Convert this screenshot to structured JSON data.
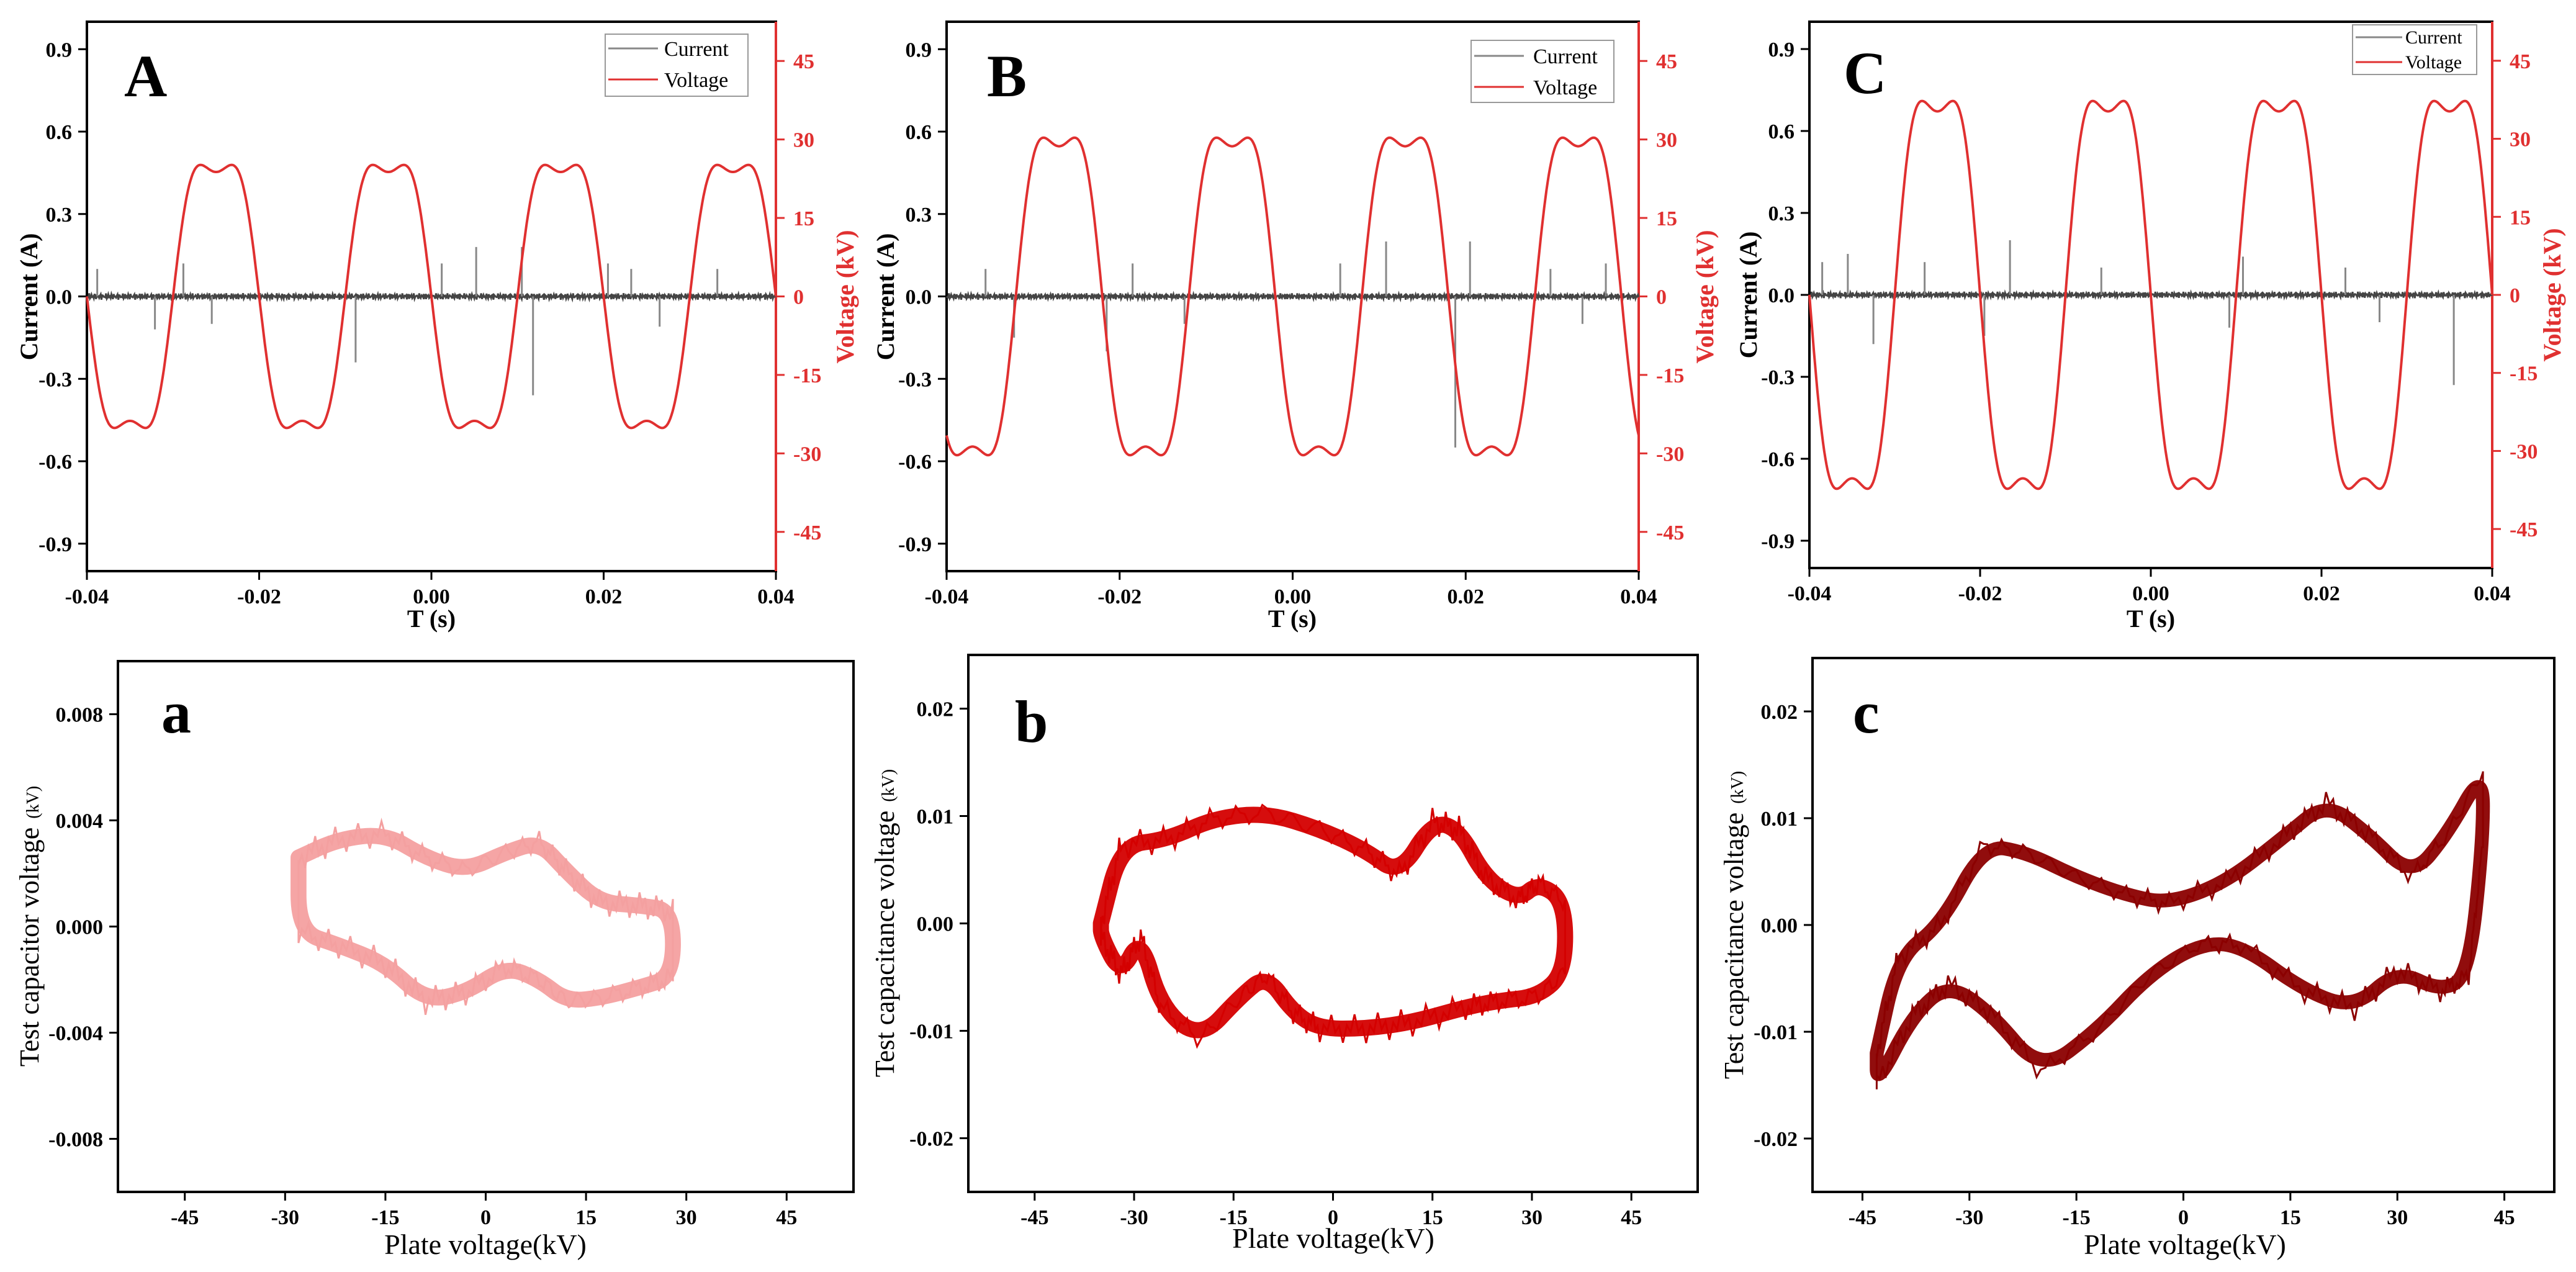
{
  "chart_data": [
    {
      "id": "A",
      "type": "line",
      "panel_label": "A",
      "xlabel": "T (s)",
      "ylabel": "Current (A)",
      "y2label": "Voltage (kV)",
      "xlim": [
        -0.04,
        0.04
      ],
      "ylim": [
        -1.0,
        1.0
      ],
      "y2lim": [
        -52.5,
        52.5
      ],
      "xticks": [
        "-0.04",
        "-0.02",
        "0.00",
        "0.02",
        "0.04"
      ],
      "xtick_values": [
        -0.04,
        -0.02,
        0.0,
        0.02,
        0.04
      ],
      "yticks": [
        "-0.9",
        "-0.6",
        "-0.3",
        "0.0",
        "0.3",
        "0.6",
        "0.9"
      ],
      "ytick_values": [
        -0.9,
        -0.6,
        -0.3,
        0.0,
        0.3,
        0.6,
        0.9
      ],
      "y2ticks": [
        "-45",
        "-30",
        "-15",
        "0",
        "15",
        "30",
        "45"
      ],
      "y2tick_values": [
        -45,
        -30,
        -15,
        0,
        15,
        30,
        45
      ],
      "legend": [
        "Current",
        "Voltage"
      ],
      "series": [
        {
          "name": "Current",
          "axis": "left",
          "color": "#444444",
          "baseline": 0.0,
          "spikes": [
            [
              -0.0388,
              0.1
            ],
            [
              -0.0321,
              -0.12
            ],
            [
              -0.0288,
              0.12
            ],
            [
              -0.0255,
              -0.1
            ],
            [
              -0.0088,
              -0.24
            ],
            [
              0.0012,
              0.12
            ],
            [
              0.0052,
              0.18
            ],
            [
              0.0105,
              0.18
            ],
            [
              0.0118,
              -0.36
            ],
            [
              0.0205,
              0.12
            ],
            [
              0.0232,
              0.1
            ],
            [
              0.0265,
              -0.11
            ],
            [
              0.0332,
              0.1
            ]
          ]
        },
        {
          "name": "Voltage",
          "axis": "right",
          "color": "#e03030",
          "amplitude": 29,
          "period": 0.02,
          "phase_zero": -0.03
        }
      ]
    },
    {
      "id": "B",
      "type": "line",
      "panel_label": "B",
      "xlabel": "T (s)",
      "ylabel": "Current (A)",
      "y2label": "Voltage (kV)",
      "xlim": [
        -0.04,
        0.04
      ],
      "ylim": [
        -1.0,
        1.0
      ],
      "y2lim": [
        -52.5,
        52.5
      ],
      "xticks": [
        "-0.04",
        "-0.02",
        "0.00",
        "0.02",
        "0.04"
      ],
      "xtick_values": [
        -0.04,
        -0.02,
        0.0,
        0.02,
        0.04
      ],
      "yticks": [
        "-0.9",
        "-0.6",
        "-0.3",
        "0.0",
        "0.3",
        "0.6",
        "0.9"
      ],
      "ytick_values": [
        -0.9,
        -0.6,
        -0.3,
        0.0,
        0.3,
        0.6,
        0.9
      ],
      "y2ticks": [
        "-45",
        "-30",
        "-15",
        "0",
        "15",
        "30",
        "45"
      ],
      "y2tick_values": [
        -45,
        -30,
        -15,
        0,
        15,
        30,
        45
      ],
      "legend": [
        "Current",
        "Voltage"
      ],
      "series": [
        {
          "name": "Current",
          "axis": "left",
          "color": "#444444",
          "baseline": 0.0,
          "spikes": [
            [
              -0.0355,
              0.1
            ],
            [
              -0.0322,
              -0.15
            ],
            [
              -0.0215,
              -0.2
            ],
            [
              -0.0185,
              0.12
            ],
            [
              -0.0125,
              -0.1
            ],
            [
              0.0055,
              0.12
            ],
            [
              0.0108,
              0.2
            ],
            [
              0.0188,
              -0.55
            ],
            [
              0.0205,
              0.2
            ],
            [
              0.0298,
              0.1
            ],
            [
              0.0335,
              -0.1
            ],
            [
              0.0362,
              0.12
            ]
          ]
        },
        {
          "name": "Voltage",
          "axis": "right",
          "color": "#e03030",
          "amplitude": 35,
          "period": 0.02,
          "phase_zero": -0.032
        }
      ]
    },
    {
      "id": "C",
      "type": "line",
      "panel_label": "C",
      "xlabel": "T (s)",
      "ylabel": "Current (A)",
      "y2label": "Voltage (kV)",
      "xlim": [
        -0.04,
        0.04
      ],
      "ylim": [
        -1.0,
        1.0
      ],
      "y2lim": [
        -52.5,
        52.5
      ],
      "xticks": [
        "-0.04",
        "-0.02",
        "0.00",
        "0.02",
        "0.04"
      ],
      "xtick_values": [
        -0.04,
        -0.02,
        0.0,
        0.02,
        0.04
      ],
      "yticks": [
        "-0.9",
        "-0.6",
        "-0.3",
        "0.0",
        "0.3",
        "0.6",
        "0.9"
      ],
      "ytick_values": [
        -0.9,
        -0.6,
        -0.3,
        0.0,
        0.3,
        0.6,
        0.9
      ],
      "y2ticks": [
        "-45",
        "-30",
        "-15",
        "0",
        "15",
        "30",
        "45"
      ],
      "y2tick_values": [
        -45,
        -30,
        -15,
        0,
        15,
        30,
        45
      ],
      "legend": [
        "Current",
        "Voltage"
      ],
      "series": [
        {
          "name": "Current",
          "axis": "left",
          "color": "#444444",
          "baseline": 0.0,
          "spikes": [
            [
              -0.0385,
              0.12
            ],
            [
              -0.0355,
              0.15
            ],
            [
              -0.0325,
              -0.18
            ],
            [
              -0.0265,
              0.12
            ],
            [
              -0.0195,
              -0.15
            ],
            [
              -0.0165,
              0.2
            ],
            [
              -0.0058,
              0.1
            ],
            [
              0.0092,
              -0.12
            ],
            [
              0.0108,
              0.14
            ],
            [
              0.0228,
              0.1
            ],
            [
              0.0268,
              -0.1
            ],
            [
              0.0355,
              -0.33
            ]
          ]
        },
        {
          "name": "Voltage",
          "axis": "right",
          "color": "#e03030",
          "amplitude": 43,
          "period": 0.02,
          "phase_zero": -0.03
        }
      ]
    },
    {
      "id": "a",
      "type": "scatter",
      "panel_label": "a",
      "xlabel": "Plate voltage(kV)",
      "ylabel": "Test capacitor voltage",
      "ylabel_unit": "(kV)",
      "xlim": [
        -55,
        55
      ],
      "ylim": [
        -0.01,
        0.01
      ],
      "xticks": [
        "-45",
        "-30",
        "-15",
        "0",
        "15",
        "30",
        "45"
      ],
      "xtick_values": [
        -45,
        -30,
        -15,
        0,
        15,
        30,
        45
      ],
      "yticks": [
        "-0.008",
        "-0.004",
        "0.000",
        "0.004",
        "0.008"
      ],
      "ytick_values": [
        -0.008,
        -0.004,
        0.0,
        0.004,
        0.008
      ],
      "color": "#f4a0a0",
      "loop_upper": [
        [
          -28,
          0.0026
        ],
        [
          -22,
          0.0033
        ],
        [
          -15,
          0.0035
        ],
        [
          -9,
          0.0026
        ],
        [
          -3,
          0.0021
        ],
        [
          3,
          0.0028
        ],
        [
          8,
          0.0032
        ],
        [
          12,
          0.0021
        ],
        [
          17,
          0.0009
        ],
        [
          23,
          0.0008
        ],
        [
          28,
          0.0006
        ]
      ],
      "loop_lower": [
        [
          28,
          -0.0019
        ],
        [
          23,
          -0.0023
        ],
        [
          17,
          -0.0027
        ],
        [
          12,
          -0.0028
        ],
        [
          8,
          -0.002
        ],
        [
          3,
          -0.0015
        ],
        [
          -3,
          -0.0025
        ],
        [
          -9,
          -0.0028
        ],
        [
          -15,
          -0.0014
        ],
        [
          -22,
          -0.0007
        ],
        [
          -28,
          -0.0002
        ]
      ],
      "band": 0.0006
    },
    {
      "id": "b",
      "type": "scatter",
      "panel_label": "b",
      "xlabel": "Plate voltage(kV)",
      "ylabel": "Test capacitance voltage",
      "ylabel_unit": "(kV)",
      "xlim": [
        -55,
        55
      ],
      "ylim": [
        -0.025,
        0.025
      ],
      "xticks": [
        "-45",
        "-30",
        "-15",
        "0",
        "15",
        "30",
        "45"
      ],
      "xtick_values": [
        -45,
        -30,
        -15,
        0,
        15,
        30,
        45
      ],
      "yticks": [
        "-0.02",
        "-0.01",
        "0.00",
        "0.01",
        "0.02"
      ],
      "ytick_values": [
        -0.02,
        -0.01,
        0.0,
        0.01,
        0.02
      ],
      "color": "#d40000",
      "loop_upper": [
        [
          -35,
          0.0
        ],
        [
          -32,
          0.0073
        ],
        [
          -25,
          0.0078
        ],
        [
          -18,
          0.0098
        ],
        [
          -10,
          0.0103
        ],
        [
          -2,
          0.0088
        ],
        [
          5,
          0.0068
        ],
        [
          10,
          0.0045
        ],
        [
          15,
          0.0095
        ],
        [
          19,
          0.0088
        ],
        [
          23,
          0.0042
        ],
        [
          28,
          0.0022
        ],
        [
          31,
          0.0038
        ],
        [
          35,
          0.002
        ]
      ],
      "loop_lower": [
        [
          35,
          -0.0045
        ],
        [
          31,
          -0.0068
        ],
        [
          25,
          -0.0072
        ],
        [
          20,
          -0.0078
        ],
        [
          12,
          -0.0092
        ],
        [
          5,
          -0.0098
        ],
        [
          -2,
          -0.0098
        ],
        [
          -6,
          -0.0083
        ],
        [
          -10,
          -0.0048
        ],
        [
          -14,
          -0.0068
        ],
        [
          -20,
          -0.0108
        ],
        [
          -26,
          -0.0078
        ],
        [
          -29,
          -0.0012
        ],
        [
          -32,
          -0.0048
        ],
        [
          -35,
          -0.0012
        ]
      ],
      "band": 0.0015
    },
    {
      "id": "c",
      "type": "scatter",
      "panel_label": "c",
      "xlabel": "Plate voltage(kV)",
      "ylabel": "Test capacitance voltage",
      "ylabel_unit": "(kV)",
      "xlim": [
        -52,
        52
      ],
      "ylim": [
        -0.025,
        0.025
      ],
      "xticks": [
        "-45",
        "-30",
        "-15",
        "0",
        "15",
        "30",
        "45"
      ],
      "xtick_values": [
        -45,
        -30,
        -15,
        0,
        15,
        30,
        45
      ],
      "yticks": [
        "-0.02",
        "-0.01",
        "0.00",
        "0.01",
        "0.02"
      ],
      "ytick_values": [
        -0.02,
        -0.01,
        0.0,
        0.01,
        0.02
      ],
      "color": "#8b0000",
      "loop_upper": [
        [
          -43,
          -0.012
        ],
        [
          -40,
          -0.003
        ],
        [
          -34,
          0.0
        ],
        [
          -28,
          0.0075
        ],
        [
          -22,
          0.0068
        ],
        [
          -15,
          0.0045
        ],
        [
          -8,
          0.0028
        ],
        [
          -2,
          0.002
        ],
        [
          6,
          0.004
        ],
        [
          14,
          0.0082
        ],
        [
          20,
          0.0115
        ],
        [
          26,
          0.0085
        ],
        [
          32,
          0.0045
        ],
        [
          37,
          0.0085
        ],
        [
          42,
          0.0145
        ]
      ],
      "loop_lower": [
        [
          42,
          0.0078
        ],
        [
          40,
          -0.0048
        ],
        [
          36,
          -0.0062
        ],
        [
          30,
          -0.0042
        ],
        [
          24,
          -0.0078
        ],
        [
          17,
          -0.0062
        ],
        [
          8,
          -0.0018
        ],
        [
          2,
          -0.0018
        ],
        [
          -5,
          -0.0048
        ],
        [
          -12,
          -0.0098
        ],
        [
          -20,
          -0.0138
        ],
        [
          -27,
          -0.0082
        ],
        [
          -33,
          -0.0055
        ],
        [
          -38,
          -0.0085
        ],
        [
          -43,
          -0.015
        ]
      ],
      "band": 0.0013
    }
  ]
}
